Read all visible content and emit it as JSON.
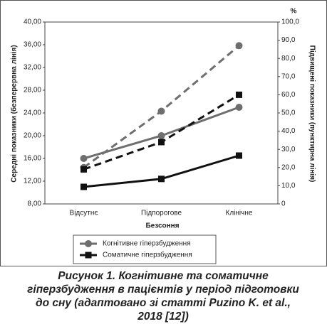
{
  "chart_data": {
    "type": "line",
    "categories": [
      "Відсутнє",
      "Підпорогове",
      "Клінічне"
    ],
    "xlabel": "Безсоння",
    "ylabel": "Середні показники (безперервна лінія)",
    "y2label": "Підвищені показники (пунктирна лінія)",
    "y2unit": "%",
    "ylim": [
      8,
      40
    ],
    "yticks": [
      {
        "value": 8,
        "label": "8,00"
      },
      {
        "value": 12,
        "label": "12,00"
      },
      {
        "value": 16,
        "label": "16,00"
      },
      {
        "value": 20,
        "label": "20,00"
      },
      {
        "value": 24,
        "label": "24,00"
      },
      {
        "value": 28,
        "label": "28,00"
      },
      {
        "value": 32,
        "label": "32,00"
      },
      {
        "value": 36,
        "label": "36,00"
      },
      {
        "value": 40,
        "label": "40,00"
      }
    ],
    "y2lim": [
      0,
      100
    ],
    "y2ticks": [
      0,
      {
        "value": 10,
        "label": "10,0"
      },
      {
        "value": 20,
        "label": "20,0"
      },
      {
        "value": 30,
        "label": "30,0"
      },
      {
        "value": 40,
        "label": "40,0"
      },
      {
        "value": 50,
        "label": "50,0"
      },
      {
        "value": 60,
        "label": "60,0"
      },
      {
        "value": 70,
        "label": "70,0"
      },
      {
        "value": 80,
        "label": "80,0"
      },
      {
        "value": 90,
        "label": "90,0"
      },
      {
        "value": 100,
        "label": "100,0"
      }
    ],
    "series": [
      {
        "name": "Когнітивне гіперзбудження",
        "color": "#6e6e6e",
        "marker": "circle",
        "values": [
          16.0,
          20.0,
          25.0
        ]
      },
      {
        "name": "Соматичне гіперзбудження",
        "color": "#111111",
        "marker": "square",
        "values": [
          11.0,
          12.4,
          16.5
        ]
      },
      {
        "name": "Когнітивне гіперзбудження",
        "color": "#6e6e6e",
        "marker": "circle",
        "dashed": true,
        "axis": "y2",
        "values": [
          20,
          51,
          87
        ]
      },
      {
        "name": "Соматичне гіперзбудження",
        "color": "#111111",
        "marker": "square",
        "dashed": true,
        "axis": "y2",
        "values": [
          19,
          34,
          60
        ]
      }
    ],
    "caption": [
      "Рисунок 1. Когнітивне та соматичне",
      "гіперзбудження в пацієнтів у період підготовки",
      "до сну (адаптовано зі статті Puzino K. et al.,",
      "2018 [12])"
    ]
  }
}
